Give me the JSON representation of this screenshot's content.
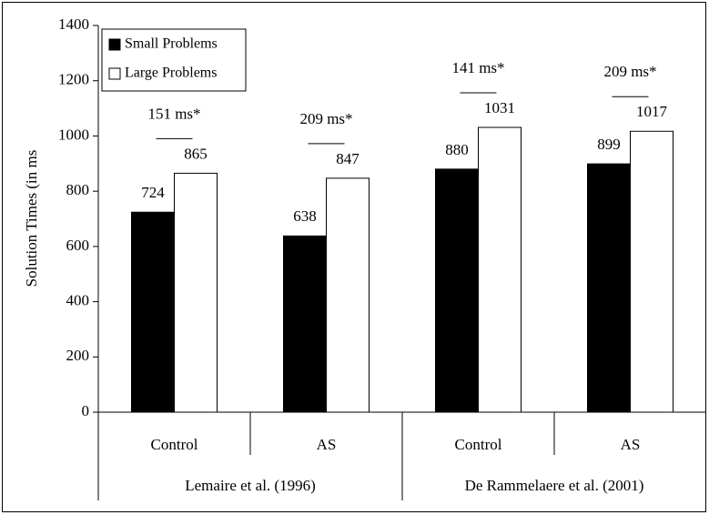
{
  "chart_data": {
    "type": "bar",
    "y_label": "Solution Times (in ms",
    "categories": [
      "Control",
      "AS",
      "Control",
      "AS"
    ],
    "group_labels": [
      "Lemaire et al. (1996)",
      "De Rammelaere et al. (2001)"
    ],
    "annotations": [
      "151 ms*",
      "209 ms*",
      "141 ms*",
      "209 ms*"
    ],
    "series": [
      {
        "name": "Small Problems",
        "color": "#000000",
        "values": [
          724,
          638,
          880,
          899
        ]
      },
      {
        "name": "Large Problems",
        "color": "#ffffff",
        "values": [
          865,
          847,
          1031,
          1017
        ]
      }
    ],
    "ylim": [
      0,
      1400
    ],
    "yticks": [
      0,
      200,
      400,
      600,
      800,
      1000,
      1200,
      1400
    ],
    "grid": false,
    "legend": "upper left"
  }
}
